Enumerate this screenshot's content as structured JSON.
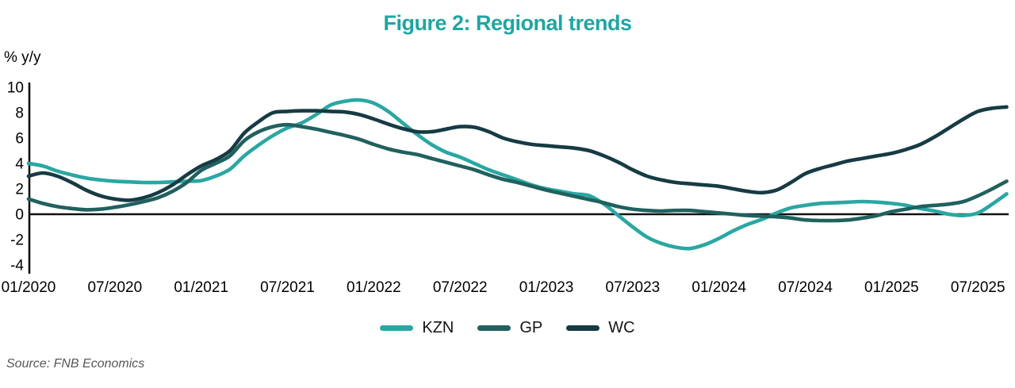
{
  "colors": {
    "title": "#1fa6a2",
    "axis": "#111111",
    "kzn": "#2aa7a2",
    "gp": "#20615e",
    "wc": "#173b44"
  },
  "source": "Source: FNB Economics",
  "legend": {
    "items": [
      {
        "label": "KZN"
      },
      {
        "label": "GP"
      },
      {
        "label": "WC"
      }
    ]
  },
  "chart_data": {
    "type": "line",
    "title": "Figure 2: Regional trends",
    "ylabel": "% y/y",
    "xlabel": "",
    "ylim": [
      -4,
      10
    ],
    "yticks": [
      10,
      8,
      6,
      4,
      2,
      0,
      -2,
      -4
    ],
    "grid": false,
    "zero_baseline": true,
    "legend_position": "bottom-center",
    "x_start": "2020-01",
    "x_step_months": 1,
    "x_tick_labels": [
      "01/2020",
      "07/2020",
      "01/2021",
      "07/2021",
      "01/2022",
      "07/2022",
      "01/2023",
      "07/2023",
      "01/2024",
      "07/2024",
      "01/2025",
      "07/2025"
    ],
    "x_tick_month_indices": [
      0,
      6,
      12,
      18,
      24,
      30,
      36,
      42,
      48,
      54,
      60,
      66
    ],
    "series": [
      {
        "name": "KZN",
        "color": "#2aa7a2",
        "values": [
          4.0,
          3.8,
          3.4,
          3.1,
          2.85,
          2.7,
          2.6,
          2.55,
          2.5,
          2.5,
          2.55,
          2.6,
          2.65,
          3.0,
          3.55,
          4.6,
          5.45,
          6.2,
          6.8,
          7.2,
          7.85,
          8.6,
          8.9,
          9.0,
          8.75,
          8.1,
          7.2,
          6.3,
          5.5,
          4.9,
          4.5,
          4.0,
          3.5,
          3.1,
          2.7,
          2.3,
          2.0,
          1.8,
          1.6,
          1.45,
          0.8,
          -0.1,
          -1.0,
          -1.8,
          -2.3,
          -2.6,
          -2.7,
          -2.4,
          -1.9,
          -1.3,
          -0.8,
          -0.4,
          0.1,
          0.5,
          0.7,
          0.85,
          0.9,
          0.95,
          1.0,
          0.95,
          0.85,
          0.7,
          0.45,
          0.25,
          0.0,
          -0.1,
          0.1,
          0.8,
          1.6
        ]
      },
      {
        "name": "GP",
        "color": "#20615e",
        "values": [
          1.2,
          0.85,
          0.6,
          0.45,
          0.35,
          0.4,
          0.55,
          0.75,
          1.0,
          1.3,
          1.8,
          2.5,
          3.45,
          4.0,
          4.6,
          5.8,
          6.5,
          6.9,
          7.05,
          6.9,
          6.7,
          6.45,
          6.2,
          5.9,
          5.5,
          5.15,
          4.9,
          4.7,
          4.4,
          4.1,
          3.8,
          3.5,
          3.1,
          2.75,
          2.5,
          2.2,
          1.9,
          1.65,
          1.4,
          1.15,
          0.9,
          0.6,
          0.4,
          0.3,
          0.25,
          0.3,
          0.3,
          0.2,
          0.1,
          0.0,
          -0.1,
          -0.15,
          -0.2,
          -0.3,
          -0.45,
          -0.5,
          -0.5,
          -0.45,
          -0.3,
          -0.1,
          0.2,
          0.4,
          0.6,
          0.7,
          0.8,
          1.0,
          1.45,
          2.0,
          2.6
        ]
      },
      {
        "name": "WC",
        "color": "#173b44",
        "values": [
          3.0,
          3.25,
          3.0,
          2.5,
          1.9,
          1.45,
          1.2,
          1.1,
          1.3,
          1.7,
          2.3,
          3.1,
          3.8,
          4.3,
          5.0,
          6.4,
          7.3,
          8.0,
          8.1,
          8.15,
          8.15,
          8.1,
          8.05,
          7.85,
          7.5,
          7.1,
          6.75,
          6.5,
          6.5,
          6.7,
          6.9,
          6.85,
          6.5,
          6.0,
          5.7,
          5.5,
          5.4,
          5.3,
          5.2,
          5.0,
          4.6,
          4.1,
          3.5,
          3.0,
          2.7,
          2.5,
          2.4,
          2.3,
          2.2,
          2.0,
          1.8,
          1.7,
          1.9,
          2.5,
          3.2,
          3.6,
          3.9,
          4.2,
          4.4,
          4.6,
          4.8,
          5.1,
          5.5,
          6.1,
          6.8,
          7.5,
          8.1,
          8.35,
          8.45
        ]
      }
    ]
  }
}
